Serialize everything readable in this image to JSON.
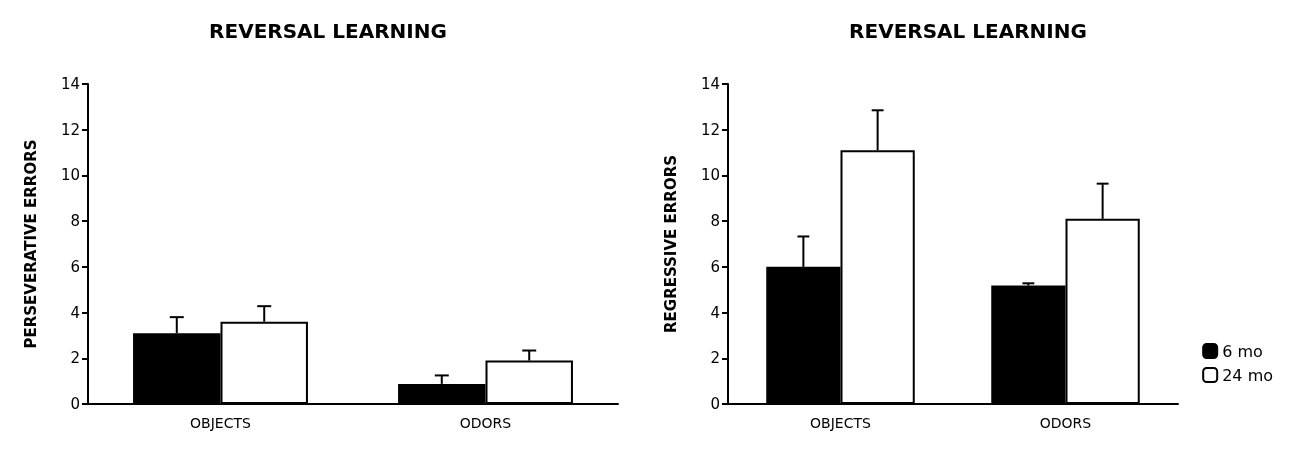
{
  "chart_data": [
    {
      "type": "bar",
      "title": "REVERSAL LEARNING",
      "ylabel": "PERSEVERATIVE ERRORS",
      "categories": [
        "OBJECTS",
        "ODORS"
      ],
      "series": [
        {
          "color": "#000000",
          "values": [
            3.1,
            0.88
          ],
          "errors": [
            [
              3.1,
              3.8
            ],
            [
              0.88,
              1.25
            ]
          ]
        },
        {
          "color": "#ffffff",
          "values": [
            3.6,
            1.9
          ],
          "errors": [
            [
              3.6,
              4.28
            ],
            [
              1.9,
              2.34
            ]
          ]
        }
      ],
      "ylim": [
        0,
        14
      ],
      "yticks": [
        0,
        2,
        4,
        6,
        8,
        10,
        12,
        14
      ],
      "grid": false,
      "legend": false
    },
    {
      "type": "bar",
      "title": "REVERSAL LEARNING",
      "ylabel": "REGRESSIVE ERRORS",
      "categories": [
        "OBJECTS",
        "ODORS"
      ],
      "series": [
        {
          "name": "6 mo",
          "color": "#000000",
          "values": [
            6.0,
            5.18
          ],
          "errors": [
            [
              6.0,
              7.33
            ],
            [
              5.18,
              5.28
            ]
          ]
        },
        {
          "name": "24 mo",
          "color": "#ffffff",
          "values": [
            11.1,
            8.1
          ],
          "errors": [
            [
              11.1,
              12.85
            ],
            [
              8.1,
              9.64
            ]
          ]
        }
      ],
      "ylim": [
        0,
        14
      ],
      "yticks": [
        0,
        2,
        4,
        6,
        8,
        10,
        12,
        14
      ],
      "grid": false,
      "legend": "right"
    }
  ]
}
